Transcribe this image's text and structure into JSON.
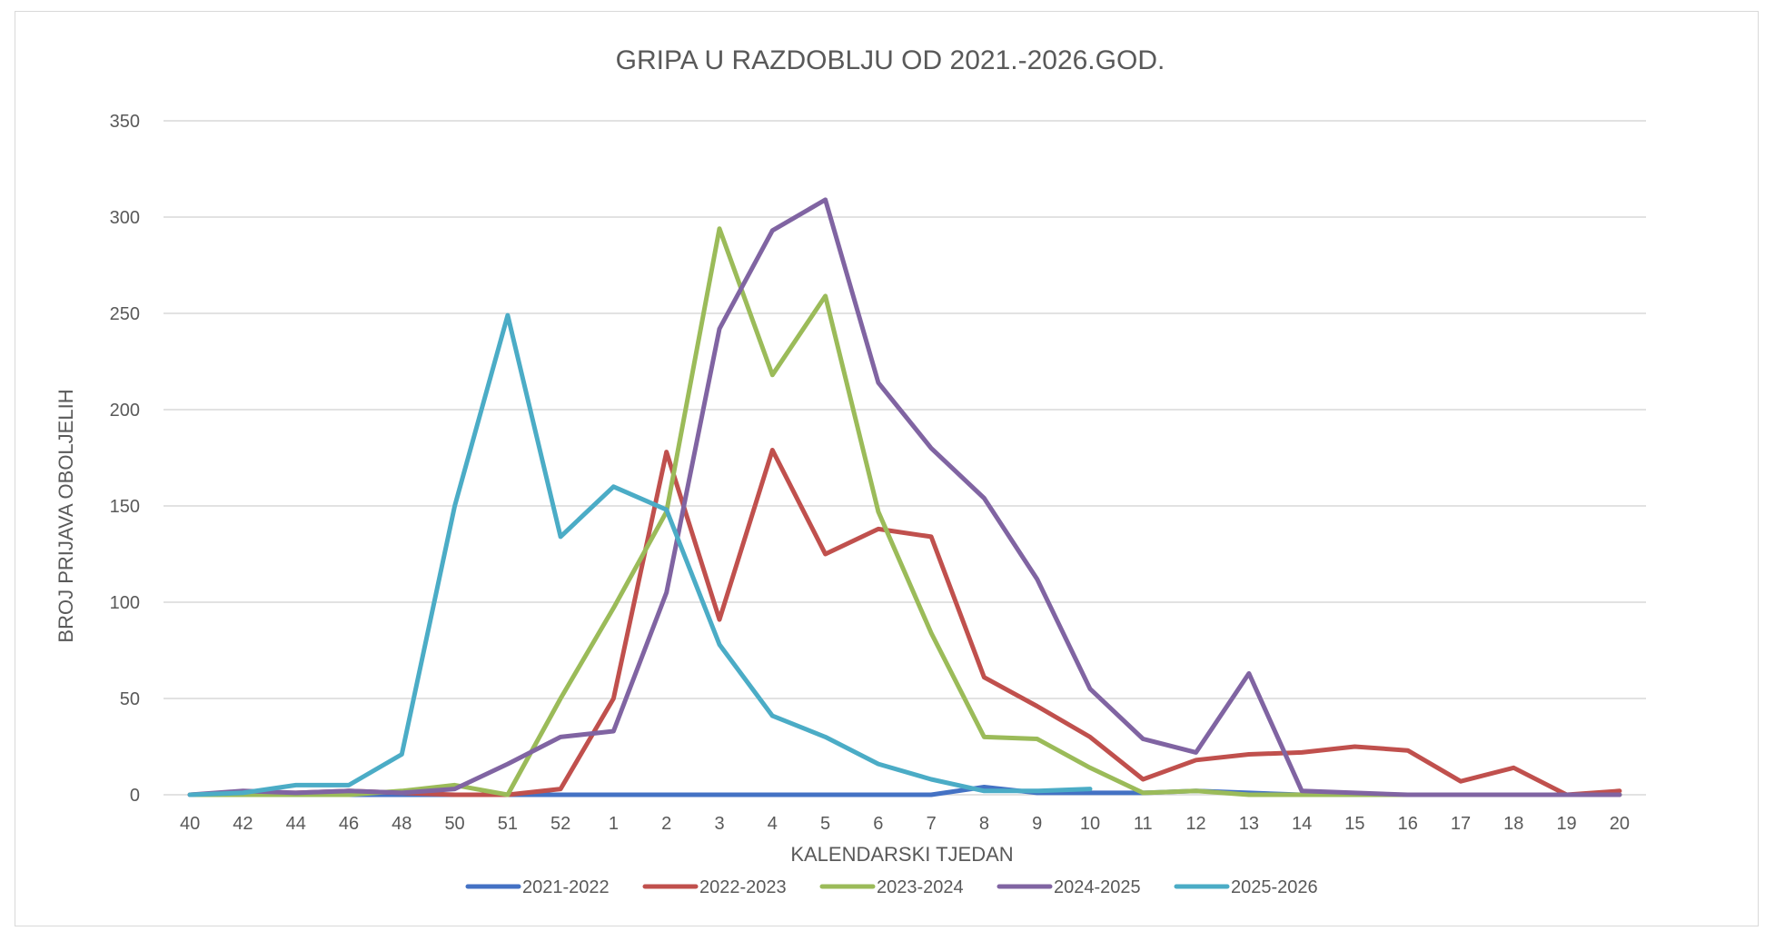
{
  "chart_data": {
    "type": "line",
    "title": "GRIPA U RAZDOBLJU OD 2021.-2026.GOD.",
    "xlabel": "KALENDARSKI TJEDAN",
    "ylabel": "BROJ PRIJAVA OBOLJELIH",
    "ylim": [
      0,
      350
    ],
    "yticks": [
      "0",
      "50",
      "100",
      "150",
      "200",
      "250",
      "300",
      "350"
    ],
    "grid": true,
    "legend_position": "bottom",
    "categories": [
      "40",
      "42",
      "44",
      "46",
      "48",
      "50",
      "51",
      "52",
      "1",
      "2",
      "3",
      "4",
      "5",
      "6",
      "7",
      "8",
      "9",
      "10",
      "11",
      "12",
      "13",
      "14",
      "15",
      "16",
      "17",
      "18",
      "19",
      "20"
    ],
    "series": [
      {
        "name": "2021-2022",
        "color": "#4472C4",
        "values": [
          0,
          0,
          0,
          0,
          0,
          0,
          0,
          0,
          0,
          0,
          0,
          0,
          0,
          0,
          0,
          4,
          1,
          1,
          1,
          2,
          1,
          0,
          0,
          0,
          0,
          0,
          0,
          0
        ]
      },
      {
        "name": "2022-2023",
        "color": "#C0504D",
        "values": [
          0,
          1,
          1,
          2,
          1,
          0,
          0,
          3,
          50,
          178,
          91,
          179,
          125,
          138,
          134,
          61,
          46,
          30,
          8,
          18,
          21,
          22,
          25,
          23,
          7,
          14,
          0,
          2
        ]
      },
      {
        "name": "2023-2024",
        "color": "#9BBB59",
        "values": [
          0,
          0,
          0,
          0,
          2,
          5,
          0,
          50,
          97,
          147,
          294,
          218,
          259,
          147,
          84,
          30,
          29,
          14,
          1,
          2,
          0,
          0,
          0,
          0,
          0,
          0,
          0,
          0
        ]
      },
      {
        "name": "2024-2025",
        "color": "#8064A2",
        "values": [
          0,
          2,
          1,
          2,
          1,
          3,
          16,
          30,
          33,
          105,
          242,
          293,
          309,
          214,
          180,
          154,
          112,
          55,
          29,
          22,
          63,
          2,
          1,
          0,
          0,
          0,
          0,
          0
        ]
      },
      {
        "name": "2025-2026",
        "color": "#4BACC6",
        "values": [
          0,
          1,
          5,
          5,
          21,
          150,
          249,
          134,
          160,
          148,
          78,
          41,
          30,
          16,
          8,
          2,
          2,
          3,
          null,
          null,
          null,
          null,
          null,
          null,
          null,
          null,
          null,
          null
        ]
      }
    ]
  }
}
